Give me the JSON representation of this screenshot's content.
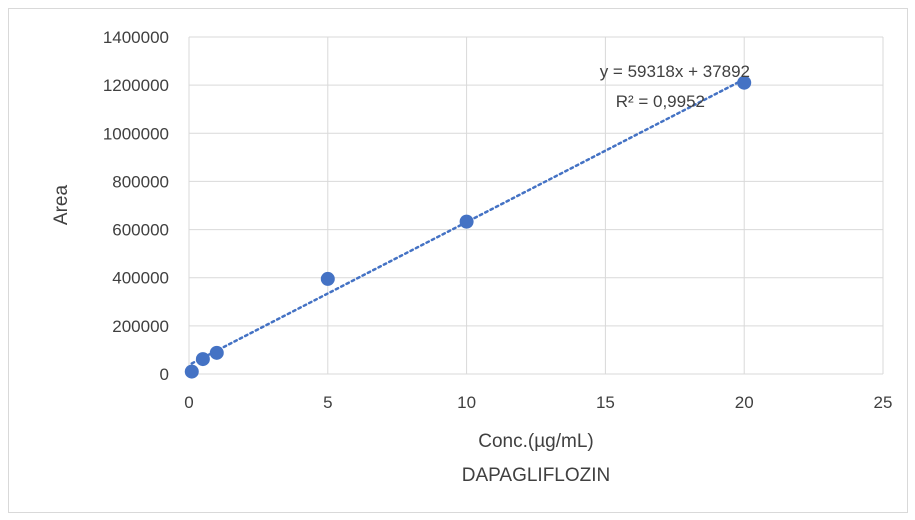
{
  "chart_data": {
    "type": "scatter",
    "title": "",
    "xlabel": "Conc.(µg/mL)",
    "xlabel2": "DAPAGLIFLOZIN",
    "ylabel": "Area",
    "xlim": [
      0,
      25
    ],
    "ylim": [
      0,
      1400000
    ],
    "xticks": [
      0,
      5,
      10,
      15,
      20,
      25
    ],
    "yticks": [
      0,
      200000,
      400000,
      600000,
      800000,
      1000000,
      1200000,
      1400000
    ],
    "grid": true,
    "legend": "none",
    "series": [
      {
        "x": [
          0.1,
          0.5,
          1,
          5,
          10,
          20
        ],
        "y": [
          10000,
          62000,
          88000,
          395000,
          633000,
          1210000
        ],
        "color": "#4472c4"
      }
    ],
    "trendline": {
      "type": "linear",
      "slope": 59318,
      "intercept": 37892,
      "x_range": [
        0.1,
        20
      ],
      "color": "#4472c4",
      "style": "dotted"
    },
    "annotations": [
      "y = 59318x + 37892",
      "R² = 0,9952"
    ]
  },
  "colors": {
    "series": "#4472c4",
    "grid": "#d9d9d9",
    "text": "#404040"
  }
}
